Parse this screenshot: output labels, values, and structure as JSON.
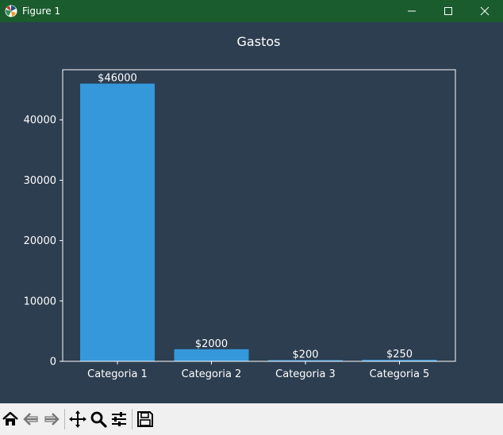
{
  "window": {
    "title": "Figure 1",
    "colors": {
      "titlebar": "#1a5c2e",
      "figure_bg": "#2c3e50",
      "bar": "#3498db",
      "toolbar_bg": "#f0f0f0"
    }
  },
  "toolbar": {
    "buttons": [
      "home-icon",
      "back-arrow-icon",
      "forward-arrow-icon",
      "pan-icon",
      "zoom-icon",
      "configure-subplots-icon",
      "save-icon"
    ]
  },
  "chart_data": {
    "type": "bar",
    "title": "Gastos",
    "xlabel": "",
    "ylabel": "",
    "categories": [
      "Categoria 1",
      "Categoria 2",
      "Categoria 3",
      "Categoria 5"
    ],
    "values": [
      46000,
      2000,
      200,
      250
    ],
    "data_labels": [
      "$46000",
      "$2000",
      "$200",
      "$250"
    ],
    "yticks": [
      "0",
      "10000",
      "20000",
      "30000",
      "40000"
    ],
    "ylim": [
      0,
      48300
    ],
    "grid": false,
    "legend": false
  }
}
